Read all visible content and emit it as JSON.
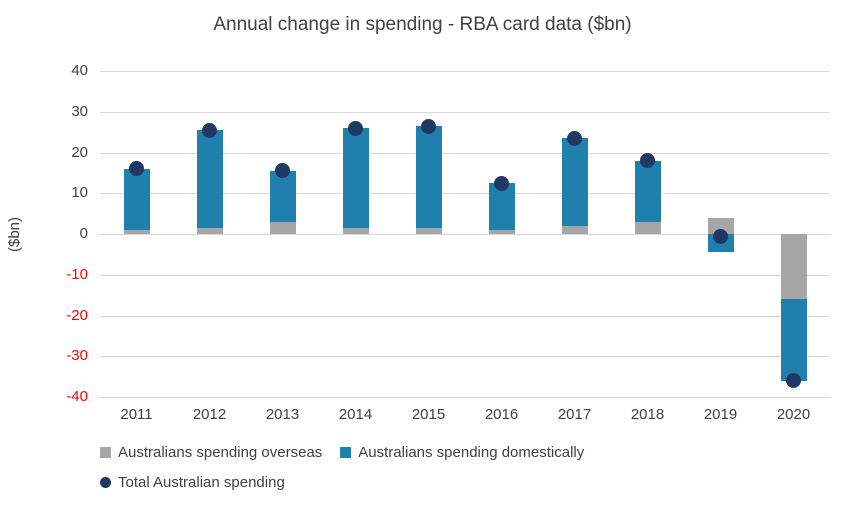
{
  "chart_data": {
    "type": "bar",
    "stacked": true,
    "title": "Annual change in spending - RBA card data ($bn)",
    "ylabel": "($bn)",
    "categories": [
      "2011",
      "2012",
      "2013",
      "2014",
      "2015",
      "2016",
      "2017",
      "2018",
      "2019",
      "2020"
    ],
    "series": [
      {
        "name": "Australians spending overseas",
        "color": "#a6a6a6",
        "values": [
          1,
          1.5,
          3,
          1.5,
          1.5,
          1,
          2,
          3,
          4,
          -16
        ]
      },
      {
        "name": "Australians spending domestically",
        "color": "#1f7fad",
        "values": [
          15,
          24,
          12.5,
          24.5,
          25,
          11.5,
          21.5,
          15,
          -4.5,
          -20
        ]
      }
    ],
    "dot_series": {
      "name": "Total Australian spending",
      "color": "#1f3864",
      "values": [
        16,
        25.5,
        15.5,
        26,
        26.5,
        12.5,
        23.5,
        18,
        -0.5,
        -36
      ]
    },
    "ylim": [
      -40,
      40
    ],
    "ytick_step": 10,
    "tick_color": "#404040",
    "negative_tick_color": "#ff0000",
    "grid_color": "#d9d9d9",
    "legend_position": "bottom",
    "grid": "horizontal-only"
  }
}
